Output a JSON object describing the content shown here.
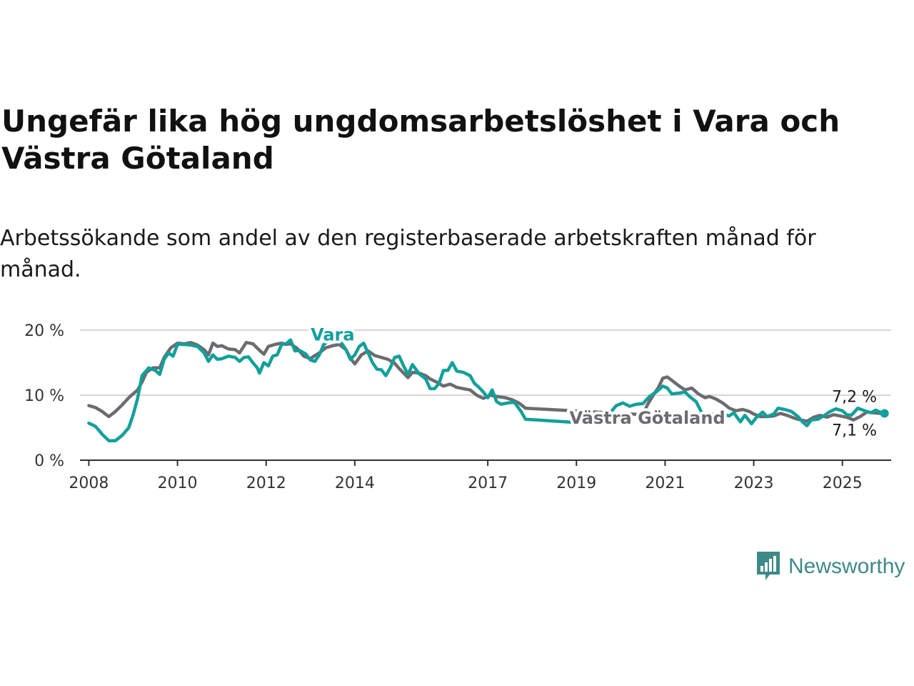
{
  "header": {
    "title": "Ungefär lika hög ungdomsarbetslöshet i Vara och Västra Götaland",
    "subtitle": "Arbetssökande som andel av den registerbaserade arbetskraften månad för månad."
  },
  "logo": {
    "text": "Newsworthy",
    "icon": "bar-chart-speech-bubble-icon",
    "color": "#3e8a86"
  },
  "chart_data": {
    "type": "line",
    "title": "Ungefär lika hög ungdomsarbetslöshet i Vara och Västra Götaland",
    "subtitle": "Arbetssökande som andel av den registerbaserade arbetskraften månad för månad.",
    "xlabel": "",
    "ylabel": "",
    "xlim": [
      2007.8,
      2026.1
    ],
    "ylim": [
      0,
      20
    ],
    "x_ticks": [
      {
        "value": 2008,
        "label": "2008"
      },
      {
        "value": 2010,
        "label": "2010"
      },
      {
        "value": 2012,
        "label": "2012"
      },
      {
        "value": 2014,
        "label": "2014"
      },
      {
        "value": 2017,
        "label": "2017"
      },
      {
        "value": 2019,
        "label": "2019"
      },
      {
        "value": 2021,
        "label": "2021"
      },
      {
        "value": 2023,
        "label": "2023"
      },
      {
        "value": 2025,
        "label": "2025"
      }
    ],
    "y_ticks": [
      {
        "value": 0,
        "label": "0 %"
      },
      {
        "value": 10,
        "label": "10 %"
      },
      {
        "value": 20,
        "label": "20 %"
      }
    ],
    "grid": true,
    "legend": "direct labels",
    "series": [
      {
        "name": "Vara",
        "color": "#11a09a",
        "label_at": [
          2013.5,
          19.3
        ],
        "end_label": "7,2 %",
        "end_marker": true,
        "points": [
          [
            2008.0,
            5.7
          ],
          [
            2008.15,
            5.2
          ],
          [
            2008.3,
            4.0
          ],
          [
            2008.45,
            3.0
          ],
          [
            2008.6,
            3.0
          ],
          [
            2008.75,
            3.8
          ],
          [
            2008.9,
            5.0
          ],
          [
            2009.0,
            7.0
          ],
          [
            2009.1,
            9.5
          ],
          [
            2009.2,
            13.0
          ],
          [
            2009.35,
            14.2
          ],
          [
            2009.5,
            13.8
          ],
          [
            2009.6,
            13.2
          ],
          [
            2009.7,
            15.5
          ],
          [
            2009.8,
            16.5
          ],
          [
            2009.9,
            16.0
          ],
          [
            2010.0,
            17.8
          ],
          [
            2010.15,
            17.8
          ],
          [
            2010.3,
            17.7
          ],
          [
            2010.45,
            17.5
          ],
          [
            2010.6,
            16.5
          ],
          [
            2010.7,
            15.2
          ],
          [
            2010.8,
            16.2
          ],
          [
            2010.9,
            15.5
          ],
          [
            2011.0,
            15.6
          ],
          [
            2011.15,
            16.0
          ],
          [
            2011.3,
            15.8
          ],
          [
            2011.4,
            15.2
          ],
          [
            2011.5,
            15.8
          ],
          [
            2011.6,
            15.9
          ],
          [
            2011.7,
            15.0
          ],
          [
            2011.8,
            14.2
          ],
          [
            2011.85,
            13.4
          ],
          [
            2011.95,
            15.0
          ],
          [
            2012.05,
            14.5
          ],
          [
            2012.15,
            16.0
          ],
          [
            2012.25,
            16.2
          ],
          [
            2012.35,
            17.8
          ],
          [
            2012.45,
            17.9
          ],
          [
            2012.55,
            18.5
          ],
          [
            2012.65,
            16.8
          ],
          [
            2012.75,
            16.9
          ],
          [
            2012.9,
            16.3
          ],
          [
            2013.0,
            15.4
          ],
          [
            2013.1,
            15.2
          ],
          [
            2013.2,
            16.2
          ],
          [
            2013.3,
            17.8
          ],
          [
            2013.4,
            18.3
          ],
          [
            2013.5,
            18.2
          ],
          [
            2013.6,
            18.3
          ],
          [
            2013.7,
            18.0
          ],
          [
            2013.8,
            17.0
          ],
          [
            2013.9,
            15.5
          ],
          [
            2014.0,
            16.2
          ],
          [
            2014.1,
            17.5
          ],
          [
            2014.2,
            18.0
          ],
          [
            2014.3,
            16.5
          ],
          [
            2014.4,
            15.0
          ],
          [
            2014.5,
            14.0
          ],
          [
            2014.6,
            13.9
          ],
          [
            2014.7,
            13.0
          ],
          [
            2014.8,
            14.2
          ],
          [
            2014.9,
            15.8
          ],
          [
            2015.0,
            16.0
          ],
          [
            2015.1,
            14.5
          ],
          [
            2015.2,
            13.2
          ],
          [
            2015.3,
            14.7
          ],
          [
            2015.45,
            13.3
          ],
          [
            2015.6,
            12.5
          ],
          [
            2015.7,
            11.0
          ],
          [
            2015.8,
            11.0
          ],
          [
            2015.9,
            11.8
          ],
          [
            2016.0,
            13.8
          ],
          [
            2016.1,
            13.8
          ],
          [
            2016.2,
            15.0
          ],
          [
            2016.3,
            13.7
          ],
          [
            2016.45,
            13.5
          ],
          [
            2016.6,
            13.0
          ],
          [
            2016.7,
            11.8
          ],
          [
            2016.8,
            11.2
          ],
          [
            2016.9,
            10.5
          ],
          [
            2017.0,
            9.6
          ],
          [
            2017.1,
            10.8
          ],
          [
            2017.2,
            9.0
          ],
          [
            2017.3,
            8.6
          ],
          [
            2017.45,
            8.8
          ],
          [
            2017.6,
            8.9
          ],
          [
            2017.75,
            7.5
          ],
          [
            2017.85,
            6.3
          ],
          [
            2019.0,
            5.8
          ],
          [
            2019.15,
            5.9
          ],
          [
            2019.3,
            5.6
          ],
          [
            2019.45,
            5.7
          ],
          [
            2019.6,
            6.5
          ],
          [
            2019.75,
            7.2
          ],
          [
            2019.9,
            8.4
          ],
          [
            2020.05,
            8.8
          ],
          [
            2020.2,
            8.3
          ],
          [
            2020.35,
            8.6
          ],
          [
            2020.5,
            8.7
          ],
          [
            2020.65,
            9.8
          ],
          [
            2020.8,
            10.5
          ],
          [
            2020.95,
            11.4
          ],
          [
            2021.05,
            11.1
          ],
          [
            2021.15,
            10.2
          ],
          [
            2021.3,
            10.3
          ],
          [
            2021.45,
            10.5
          ],
          [
            2021.55,
            9.8
          ],
          [
            2021.7,
            9.0
          ],
          [
            2021.85,
            7.0
          ],
          [
            2022.0,
            7.1
          ],
          [
            2022.15,
            7.0
          ],
          [
            2022.3,
            7.1
          ],
          [
            2022.45,
            6.8
          ],
          [
            2022.55,
            7.3
          ],
          [
            2022.7,
            5.9
          ],
          [
            2022.8,
            6.9
          ],
          [
            2022.95,
            5.6
          ],
          [
            2023.05,
            6.5
          ],
          [
            2023.2,
            7.4
          ],
          [
            2023.3,
            6.7
          ],
          [
            2023.45,
            7.1
          ],
          [
            2023.55,
            8.0
          ],
          [
            2023.7,
            7.8
          ],
          [
            2023.85,
            7.5
          ],
          [
            2024.0,
            6.7
          ],
          [
            2024.1,
            5.9
          ],
          [
            2024.2,
            5.3
          ],
          [
            2024.3,
            6.2
          ],
          [
            2024.45,
            6.3
          ],
          [
            2024.6,
            6.9
          ],
          [
            2024.7,
            7.4
          ],
          [
            2024.85,
            7.9
          ],
          [
            2025.0,
            7.6
          ],
          [
            2025.1,
            7.0
          ],
          [
            2025.2,
            6.9
          ],
          [
            2025.35,
            8.0
          ],
          [
            2025.5,
            7.6
          ],
          [
            2025.65,
            7.3
          ],
          [
            2025.75,
            7.7
          ],
          [
            2025.85,
            7.4
          ],
          [
            2025.95,
            7.2
          ]
        ]
      },
      {
        "name": "Västra Götaland",
        "color": "#6c6b6f",
        "label_at": [
          2020.6,
          6.5
        ],
        "end_label": "7,1 %",
        "end_marker": false,
        "points": [
          [
            2008.0,
            8.4
          ],
          [
            2008.15,
            8.1
          ],
          [
            2008.3,
            7.5
          ],
          [
            2008.45,
            6.7
          ],
          [
            2008.6,
            7.5
          ],
          [
            2008.75,
            8.5
          ],
          [
            2008.9,
            9.6
          ],
          [
            2009.1,
            10.8
          ],
          [
            2009.2,
            12.0
          ],
          [
            2009.3,
            13.5
          ],
          [
            2009.45,
            14.2
          ],
          [
            2009.6,
            14.2
          ],
          [
            2009.7,
            15.8
          ],
          [
            2009.85,
            17.3
          ],
          [
            2010.0,
            18.0
          ],
          [
            2010.15,
            17.9
          ],
          [
            2010.3,
            18.1
          ],
          [
            2010.45,
            17.7
          ],
          [
            2010.6,
            17.0
          ],
          [
            2010.7,
            16.2
          ],
          [
            2010.8,
            18.0
          ],
          [
            2010.9,
            17.5
          ],
          [
            2011.0,
            17.6
          ],
          [
            2011.15,
            17.1
          ],
          [
            2011.3,
            17.0
          ],
          [
            2011.4,
            16.5
          ],
          [
            2011.55,
            18.1
          ],
          [
            2011.7,
            17.9
          ],
          [
            2011.85,
            16.9
          ],
          [
            2011.95,
            16.3
          ],
          [
            2012.05,
            17.5
          ],
          [
            2012.2,
            17.8
          ],
          [
            2012.35,
            18.0
          ],
          [
            2012.45,
            17.8
          ],
          [
            2012.55,
            17.9
          ],
          [
            2012.7,
            17.2
          ],
          [
            2012.85,
            16.0
          ],
          [
            2013.0,
            15.6
          ],
          [
            2013.1,
            16.1
          ],
          [
            2013.2,
            16.5
          ],
          [
            2013.35,
            17.3
          ],
          [
            2013.5,
            17.6
          ],
          [
            2013.65,
            17.8
          ],
          [
            2013.8,
            17.0
          ],
          [
            2013.9,
            15.7
          ],
          [
            2014.0,
            14.8
          ],
          [
            2014.15,
            16.2
          ],
          [
            2014.3,
            16.8
          ],
          [
            2014.45,
            16.1
          ],
          [
            2014.6,
            15.8
          ],
          [
            2014.75,
            15.5
          ],
          [
            2014.9,
            14.9
          ],
          [
            2015.0,
            14.1
          ],
          [
            2015.1,
            13.4
          ],
          [
            2015.2,
            12.7
          ],
          [
            2015.3,
            13.5
          ],
          [
            2015.45,
            13.4
          ],
          [
            2015.6,
            13.0
          ],
          [
            2015.7,
            12.5
          ],
          [
            2015.85,
            12.0
          ],
          [
            2016.0,
            11.4
          ],
          [
            2016.15,
            11.7
          ],
          [
            2016.3,
            11.2
          ],
          [
            2016.45,
            11.0
          ],
          [
            2016.6,
            10.8
          ],
          [
            2016.75,
            10.0
          ],
          [
            2016.9,
            9.5
          ],
          [
            2017.05,
            10.0
          ],
          [
            2017.2,
            9.8
          ],
          [
            2017.4,
            9.6
          ],
          [
            2017.55,
            9.3
          ],
          [
            2017.7,
            8.8
          ],
          [
            2017.85,
            8.0
          ],
          [
            2020.5,
            7.0
          ],
          [
            2020.6,
            8.5
          ],
          [
            2020.75,
            10.2
          ],
          [
            2020.85,
            11.2
          ],
          [
            2020.95,
            12.6
          ],
          [
            2021.05,
            12.8
          ],
          [
            2021.15,
            12.3
          ],
          [
            2021.3,
            11.5
          ],
          [
            2021.45,
            10.8
          ],
          [
            2021.6,
            11.1
          ],
          [
            2021.75,
            10.2
          ],
          [
            2021.9,
            9.6
          ],
          [
            2022.0,
            9.8
          ],
          [
            2022.15,
            9.4
          ],
          [
            2022.3,
            8.8
          ],
          [
            2022.45,
            8.0
          ],
          [
            2022.6,
            7.6
          ],
          [
            2022.75,
            7.8
          ],
          [
            2022.9,
            7.5
          ],
          [
            2023.0,
            7.1
          ],
          [
            2023.15,
            6.7
          ],
          [
            2023.3,
            6.7
          ],
          [
            2023.45,
            6.8
          ],
          [
            2023.6,
            7.2
          ],
          [
            2023.75,
            6.9
          ],
          [
            2023.9,
            6.5
          ],
          [
            2024.05,
            6.2
          ],
          [
            2024.2,
            6.0
          ],
          [
            2024.35,
            6.6
          ],
          [
            2024.5,
            6.9
          ],
          [
            2024.65,
            6.6
          ],
          [
            2024.8,
            7.0
          ],
          [
            2024.95,
            6.8
          ],
          [
            2025.1,
            6.6
          ],
          [
            2025.25,
            6.2
          ],
          [
            2025.4,
            6.7
          ],
          [
            2025.55,
            7.4
          ],
          [
            2025.7,
            7.3
          ],
          [
            2025.85,
            7.2
          ],
          [
            2025.95,
            7.1
          ]
        ]
      }
    ]
  }
}
